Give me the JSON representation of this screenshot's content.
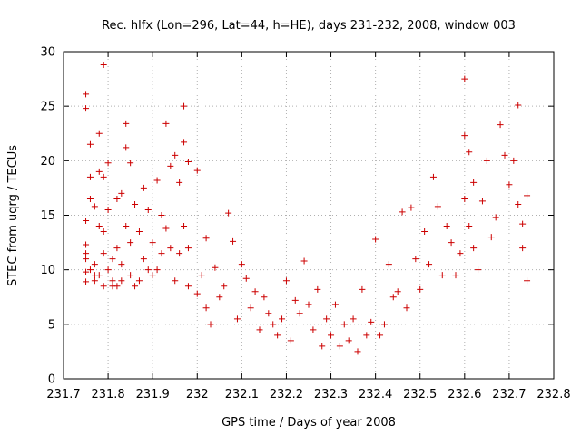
{
  "chart_data": {
    "type": "scatter",
    "title": "Rec. hlfx (Lon=296, Lat=44, h=HE), days 231-232, 2008, window 003",
    "xlabel": "GPS time / Days of year 2008",
    "ylabel": "STEC from uqrg / TECUs",
    "xlim": [
      231.7,
      232.8
    ],
    "ylim": [
      0,
      30
    ],
    "xticks": [
      231.7,
      231.8,
      231.9,
      232,
      232.1,
      232.2,
      232.3,
      232.4,
      232.5,
      232.6,
      232.7,
      232.8
    ],
    "xtick_labels": [
      "231.7",
      "231.8",
      "231.9",
      "232",
      "232.1",
      "232.2",
      "232.3",
      "232.4",
      "232.5",
      "232.6",
      "232.7",
      "232.8"
    ],
    "yticks": [
      0,
      5,
      10,
      15,
      20,
      25,
      30
    ],
    "ytick_labels": [
      "0",
      "5",
      "10",
      "15",
      "20",
      "25",
      "30"
    ],
    "grid": true,
    "legend": "none",
    "marker": "plus",
    "color": "#cc0000",
    "series": [
      {
        "name": "",
        "x": [
          231.75,
          231.75,
          231.75,
          231.75,
          231.75,
          231.75,
          231.75,
          231.75,
          231.76,
          231.76,
          231.76,
          231.76,
          231.77,
          231.77,
          231.77,
          231.77,
          231.78,
          231.78,
          231.78,
          231.78,
          231.79,
          231.79,
          231.79,
          231.79,
          231.79,
          231.8,
          231.8,
          231.8,
          231.81,
          231.81,
          231.81,
          231.82,
          231.82,
          231.82,
          231.83,
          231.83,
          231.83,
          231.84,
          231.84,
          231.84,
          231.85,
          231.85,
          231.85,
          231.86,
          231.86,
          231.87,
          231.87,
          231.88,
          231.88,
          231.89,
          231.89,
          231.9,
          231.9,
          231.91,
          231.91,
          231.92,
          231.92,
          231.93,
          231.93,
          231.94,
          231.94,
          231.95,
          231.95,
          231.96,
          231.96,
          231.97,
          231.97,
          231.97,
          231.98,
          231.98,
          231.98,
          232.0,
          232.0,
          232.01,
          232.02,
          232.02,
          232.03,
          232.04,
          232.05,
          232.06,
          232.07,
          232.08,
          232.09,
          232.1,
          232.11,
          232.12,
          232.13,
          232.14,
          232.15,
          232.16,
          232.17,
          232.18,
          232.19,
          232.2,
          232.21,
          232.22,
          232.23,
          232.24,
          232.25,
          232.26,
          232.27,
          232.28,
          232.29,
          232.3,
          232.31,
          232.32,
          232.33,
          232.34,
          232.35,
          232.36,
          232.37,
          232.38,
          232.39,
          232.4,
          232.41,
          232.42,
          232.43,
          232.44,
          232.45,
          232.46,
          232.47,
          232.48,
          232.49,
          232.5,
          232.51,
          232.52,
          232.53,
          232.54,
          232.55,
          232.56,
          232.57,
          232.58,
          232.59,
          232.6,
          232.6,
          232.6,
          232.61,
          232.61,
          232.62,
          232.62,
          232.63,
          232.64,
          232.65,
          232.66,
          232.67,
          232.68,
          232.69,
          232.7,
          232.71,
          232.72,
          232.72,
          232.73,
          232.73,
          232.74,
          232.74
        ],
        "y": [
          26.1,
          24.8,
          14.5,
          12.3,
          11.0,
          9.8,
          8.9,
          11.5,
          21.5,
          18.5,
          16.5,
          10.0,
          9.5,
          9.0,
          10.5,
          15.8,
          22.5,
          19.0,
          14.0,
          9.5,
          28.8,
          18.5,
          13.5,
          11.5,
          8.5,
          19.8,
          15.5,
          10.0,
          11.0,
          9.0,
          8.5,
          16.5,
          12.0,
          8.5,
          17.0,
          10.5,
          9.0,
          23.4,
          21.2,
          14.0,
          19.8,
          12.5,
          9.5,
          16.0,
          8.5,
          13.5,
          9.0,
          17.5,
          11.0,
          15.5,
          10.0,
          12.5,
          9.5,
          18.2,
          10.0,
          15.0,
          11.5,
          23.4,
          13.8,
          19.5,
          12.0,
          20.5,
          9.0,
          18.0,
          11.5,
          25.0,
          21.7,
          14.0,
          19.9,
          12.0,
          8.5,
          19.1,
          7.8,
          9.5,
          12.9,
          6.5,
          5.0,
          10.2,
          7.5,
          8.5,
          15.2,
          12.6,
          5.5,
          10.5,
          9.2,
          6.5,
          8.0,
          4.5,
          7.5,
          6.0,
          5.0,
          4.0,
          5.5,
          9.0,
          3.5,
          7.2,
          6.0,
          10.8,
          6.8,
          4.5,
          8.2,
          3.0,
          5.5,
          4.0,
          6.8,
          3.0,
          5.0,
          3.5,
          5.5,
          2.5,
          8.2,
          4.0,
          5.2,
          12.8,
          4.0,
          5.0,
          10.5,
          7.5,
          8.0,
          15.3,
          6.5,
          15.7,
          11.0,
          8.2,
          13.5,
          10.5,
          18.5,
          15.8,
          9.5,
          14.0,
          12.5,
          9.5,
          11.5,
          27.5,
          22.3,
          16.5,
          20.8,
          14.0,
          18.0,
          12.0,
          10.0,
          16.3,
          20.0,
          13.0,
          14.8,
          23.3,
          20.5,
          17.8,
          20.0,
          25.1,
          16.0,
          14.2,
          12.0,
          16.8,
          9.0
        ]
      }
    ]
  }
}
